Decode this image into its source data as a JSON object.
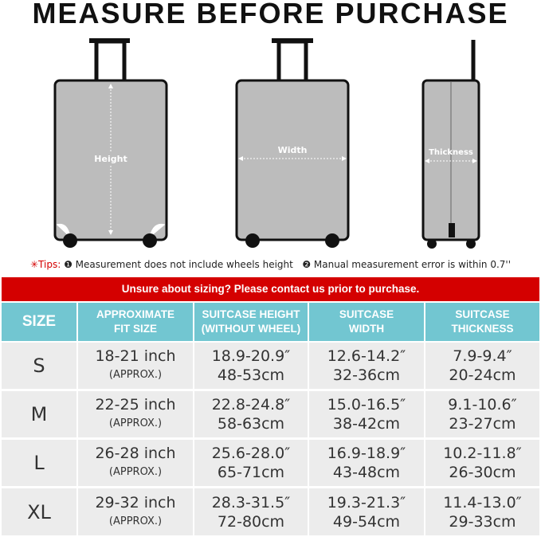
{
  "title": "MEASURE BEFORE PURCHASE",
  "diagram": {
    "height_label": "Height",
    "width_label": "Width",
    "thickness_label": "Thickness"
  },
  "tips": {
    "label": "✳Tips:",
    "tip1": "❶ Measurement does not include wheels height",
    "tip2": "❷ Manual measurement error is within 0.7''"
  },
  "banner": "Unsure about sizing? Please contact us prior to purchase.",
  "colors": {
    "banner": "#d40000",
    "header": "#72c6d1",
    "cell": "#ececec"
  },
  "table": {
    "headers": [
      [
        "SIZE"
      ],
      [
        "APPROXIMATE",
        "FIT SIZE"
      ],
      [
        "SUITCASE HEIGHT",
        "(WITHOUT WHEEL)"
      ],
      [
        "SUITCASE",
        "WIDTH"
      ],
      [
        "SUITCASE",
        "THICKNESS"
      ]
    ],
    "rows": [
      {
        "size": "S",
        "fit": "18-21 inch",
        "approx": "(APPROX.)",
        "height": [
          "18.9-20.9″",
          "48-53cm"
        ],
        "width": [
          "12.6-14.2″",
          "32-36cm"
        ],
        "thickness": [
          "7.9-9.4″",
          "20-24cm"
        ]
      },
      {
        "size": "M",
        "fit": "22-25 inch",
        "approx": "(APPROX.)",
        "height": [
          "22.8-24.8″",
          "58-63cm"
        ],
        "width": [
          "15.0-16.5″",
          "38-42cm"
        ],
        "thickness": [
          "9.1-10.6″",
          "23-27cm"
        ]
      },
      {
        "size": "L",
        "fit": "26-28 inch",
        "approx": "(APPROX.)",
        "height": [
          "25.6-28.0″",
          "65-71cm"
        ],
        "width": [
          "16.9-18.9″",
          "43-48cm"
        ],
        "thickness": [
          "10.2-11.8″",
          "26-30cm"
        ]
      },
      {
        "size": "XL",
        "fit": "29-32 inch",
        "approx": "(APPROX.)",
        "height": [
          "28.3-31.5″",
          "72-80cm"
        ],
        "width": [
          "19.3-21.3″",
          "49-54cm"
        ],
        "thickness": [
          "11.4-13.0″",
          "29-33cm"
        ]
      }
    ]
  }
}
